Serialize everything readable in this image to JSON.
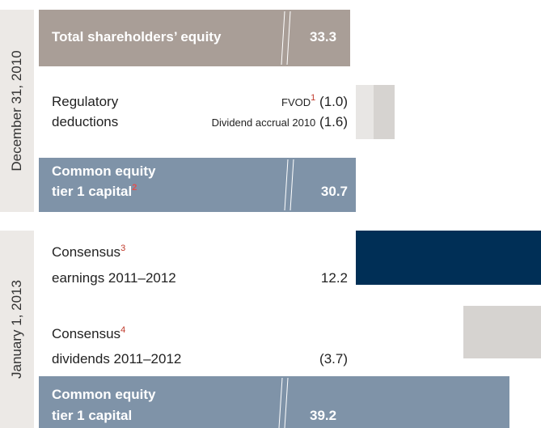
{
  "sections": [
    {
      "period": "December 31, 2010"
    },
    {
      "period": "January 1, 2013"
    }
  ],
  "rows": [
    {
      "label": "Total shareholders’ equity",
      "value": "33.3"
    },
    {
      "label_line1": "Regulatory",
      "label_line2": "deductions",
      "items": [
        {
          "label": "FVOD",
          "note": "1",
          "value": "(1.0)"
        },
        {
          "label": "Dividend accrual 2010",
          "value": "(1.6)"
        }
      ]
    },
    {
      "label_line1": "Common equity",
      "label_line2": "tier 1 capital",
      "note": "2",
      "value": "30.7"
    },
    {
      "label_line1": "Consensus",
      "note": "3",
      "label_line2": "earnings 2011–2012",
      "value": "12.2"
    },
    {
      "label_line1": "Consensus",
      "note": "4",
      "label_line2": "dividends 2011–2012",
      "value": "(3.7)"
    },
    {
      "label_line1": "Common equity",
      "label_line2": "tier 1 capital",
      "value": "39.2"
    }
  ]
}
